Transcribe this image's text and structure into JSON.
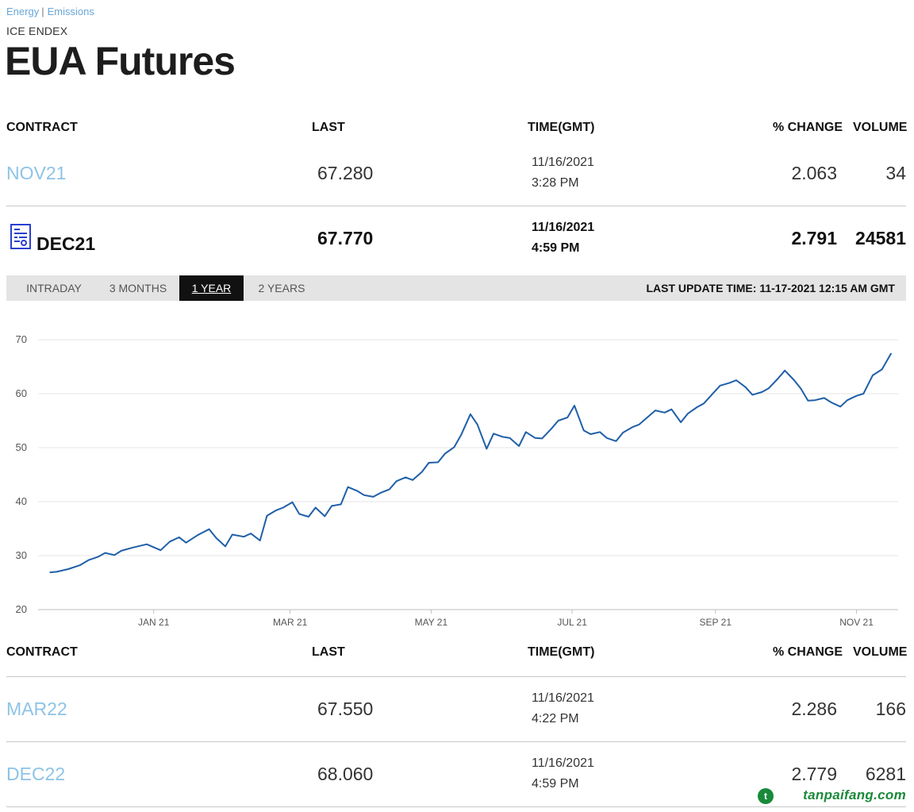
{
  "breadcrumb": {
    "energy": "Energy",
    "emissions": "Emissions"
  },
  "provider": "ICE ENDEX",
  "title": "EUA Futures",
  "headers": {
    "contract": "CONTRACT",
    "last": "LAST",
    "time": "TIME(GMT)",
    "change": "% CHANGE",
    "volume": "VOLUME"
  },
  "top_rows": [
    {
      "contract": "NOV21",
      "last": "67.280",
      "date": "11/16/2021",
      "time": "3:28 PM",
      "change": "2.063",
      "volume": "34"
    },
    {
      "contract": "DEC21",
      "last": "67.770",
      "date": "11/16/2021",
      "time": "4:59 PM",
      "change": "2.791",
      "volume": "24581"
    }
  ],
  "bottom_rows": [
    {
      "contract": "MAR22",
      "last": "67.550",
      "date": "11/16/2021",
      "time": "4:22 PM",
      "change": "2.286",
      "volume": "166"
    },
    {
      "contract": "DEC22",
      "last": "68.060",
      "date": "11/16/2021",
      "time": "4:59 PM",
      "change": "2.779",
      "volume": "6281"
    }
  ],
  "tabs": [
    "INTRADAY",
    "3 MONTHS",
    "1 YEAR",
    "2 YEARS"
  ],
  "active_tab": "1 YEAR",
  "last_update": "LAST UPDATE TIME: 11-17-2021 12:15 AM GMT",
  "icons": {
    "contract_detail": "report-chart-icon"
  },
  "colors": {
    "line": "#1f5fa8",
    "link": "#8ec3e6",
    "tab_active": "#111111"
  },
  "watermark": "tanpaifang.com",
  "chart_data": {
    "type": "line",
    "title": "",
    "xlabel": "",
    "ylabel": "",
    "ylim": [
      20,
      70
    ],
    "yticks": [
      20,
      30,
      40,
      50,
      60,
      70
    ],
    "xticks": [
      "JAN 21",
      "MAR 21",
      "MAY 21",
      "JUL 21",
      "SEP 21",
      "NOV 21"
    ],
    "grid": true,
    "series": [
      {
        "name": "DEC21",
        "values": [
          [
            "2020-11-17",
            26.9
          ],
          [
            "2020-11-20",
            27.0
          ],
          [
            "2020-11-25",
            27.5
          ],
          [
            "2020-11-30",
            28.2
          ],
          [
            "2020-12-04",
            29.2
          ],
          [
            "2020-12-08",
            29.8
          ],
          [
            "2020-12-11",
            30.5
          ],
          [
            "2020-12-15",
            30.1
          ],
          [
            "2020-12-18",
            30.9
          ],
          [
            "2020-12-23",
            31.5
          ],
          [
            "2020-12-29",
            32.1
          ],
          [
            "2021-01-04",
            31.0
          ],
          [
            "2021-01-08",
            32.6
          ],
          [
            "2021-01-12",
            33.4
          ],
          [
            "2021-01-15",
            32.4
          ],
          [
            "2021-01-20",
            33.8
          ],
          [
            "2021-01-25",
            34.9
          ],
          [
            "2021-01-28",
            33.3
          ],
          [
            "2021-02-01",
            31.7
          ],
          [
            "2021-02-04",
            33.9
          ],
          [
            "2021-02-09",
            33.5
          ],
          [
            "2021-02-12",
            34.1
          ],
          [
            "2021-02-16",
            32.8
          ],
          [
            "2021-02-19",
            37.4
          ],
          [
            "2021-02-23",
            38.4
          ],
          [
            "2021-02-26",
            38.9
          ],
          [
            "2021-03-02",
            39.9
          ],
          [
            "2021-03-05",
            37.7
          ],
          [
            "2021-03-09",
            37.2
          ],
          [
            "2021-03-12",
            38.9
          ],
          [
            "2021-03-16",
            37.3
          ],
          [
            "2021-03-19",
            39.2
          ],
          [
            "2021-03-23",
            39.5
          ],
          [
            "2021-03-26",
            42.7
          ],
          [
            "2021-03-30",
            42.0
          ],
          [
            "2021-04-02",
            41.2
          ],
          [
            "2021-04-06",
            40.9
          ],
          [
            "2021-04-09",
            41.6
          ],
          [
            "2021-04-13",
            42.3
          ],
          [
            "2021-04-16",
            43.8
          ],
          [
            "2021-04-20",
            44.5
          ],
          [
            "2021-04-23",
            44.0
          ],
          [
            "2021-04-27",
            45.5
          ],
          [
            "2021-04-30",
            47.2
          ],
          [
            "2021-05-04",
            47.3
          ],
          [
            "2021-05-07",
            48.9
          ],
          [
            "2021-05-11",
            50.1
          ],
          [
            "2021-05-14",
            52.4
          ],
          [
            "2021-05-18",
            56.2
          ],
          [
            "2021-05-21",
            54.3
          ],
          [
            "2021-05-25",
            49.8
          ],
          [
            "2021-05-28",
            52.6
          ],
          [
            "2021-06-01",
            52.0
          ],
          [
            "2021-06-04",
            51.8
          ],
          [
            "2021-06-08",
            50.3
          ],
          [
            "2021-06-11",
            52.9
          ],
          [
            "2021-06-15",
            51.8
          ],
          [
            "2021-06-18",
            51.7
          ],
          [
            "2021-06-22",
            53.5
          ],
          [
            "2021-06-25",
            55.0
          ],
          [
            "2021-06-29",
            55.6
          ],
          [
            "2021-07-02",
            57.8
          ],
          [
            "2021-07-06",
            53.2
          ],
          [
            "2021-07-09",
            52.5
          ],
          [
            "2021-07-13",
            52.9
          ],
          [
            "2021-07-16",
            51.8
          ],
          [
            "2021-07-20",
            51.2
          ],
          [
            "2021-07-23",
            52.8
          ],
          [
            "2021-07-27",
            53.8
          ],
          [
            "2021-07-30",
            54.3
          ],
          [
            "2021-08-03",
            55.8
          ],
          [
            "2021-08-06",
            56.9
          ],
          [
            "2021-08-10",
            56.5
          ],
          [
            "2021-08-13",
            57.1
          ],
          [
            "2021-08-17",
            54.7
          ],
          [
            "2021-08-20",
            56.3
          ],
          [
            "2021-08-24",
            57.5
          ],
          [
            "2021-08-27",
            58.2
          ],
          [
            "2021-08-31",
            60.1
          ],
          [
            "2021-09-03",
            61.5
          ],
          [
            "2021-09-07",
            62.0
          ],
          [
            "2021-09-10",
            62.5
          ],
          [
            "2021-09-14",
            61.2
          ],
          [
            "2021-09-17",
            59.8
          ],
          [
            "2021-09-21",
            60.3
          ],
          [
            "2021-09-24",
            61.0
          ],
          [
            "2021-09-28",
            62.8
          ],
          [
            "2021-10-01",
            64.3
          ],
          [
            "2021-10-05",
            62.5
          ],
          [
            "2021-10-08",
            60.9
          ],
          [
            "2021-10-11",
            58.7
          ],
          [
            "2021-10-14",
            58.8
          ],
          [
            "2021-10-18",
            59.2
          ],
          [
            "2021-10-21",
            58.4
          ],
          [
            "2021-10-25",
            57.6
          ],
          [
            "2021-10-28",
            58.8
          ],
          [
            "2021-11-01",
            59.6
          ],
          [
            "2021-11-04",
            60.0
          ],
          [
            "2021-11-08",
            63.4
          ],
          [
            "2021-11-12",
            64.5
          ],
          [
            "2021-11-16",
            67.5
          ]
        ]
      }
    ]
  }
}
